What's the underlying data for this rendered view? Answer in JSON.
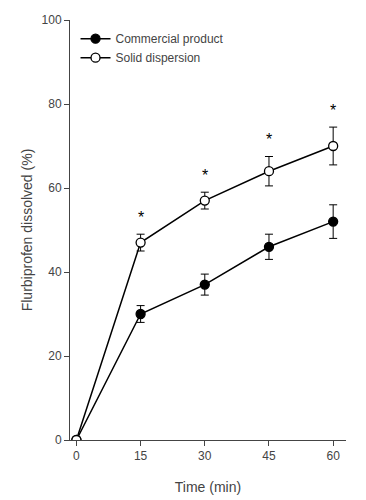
{
  "chart_data": {
    "type": "line",
    "x": [
      0,
      15,
      30,
      45,
      60
    ],
    "series": [
      {
        "name": "Commercial product",
        "color": "#000000",
        "marker": "circle",
        "values": [
          0,
          30,
          37,
          46,
          52
        ],
        "errors": [
          0,
          2.0,
          2.5,
          3.0,
          4.0
        ]
      },
      {
        "name": "Solid dispersion",
        "color": "#000000",
        "marker": "circle-open",
        "values": [
          0,
          47,
          57,
          64,
          70
        ],
        "errors": [
          0,
          2.0,
          2.0,
          3.5,
          4.5
        ]
      }
    ],
    "annotations": [
      {
        "text": "*",
        "x": 15,
        "y": 50.5
      },
      {
        "text": "*",
        "x": 30,
        "y": 60.5
      },
      {
        "text": "*",
        "x": 45,
        "y": 69
      },
      {
        "text": "*",
        "x": 60,
        "y": 76
      }
    ],
    "xlabel": "Time (min)",
    "ylabel": "Flurbiprofen dissolved (%)",
    "xlim": [
      -1.5,
      63
    ],
    "xticks": [
      0,
      15,
      30,
      45,
      60
    ],
    "ylim": [
      0,
      100
    ],
    "yticks": [
      0,
      20,
      40,
      60,
      80,
      100
    ],
    "grid": false,
    "legend": "upper left"
  }
}
